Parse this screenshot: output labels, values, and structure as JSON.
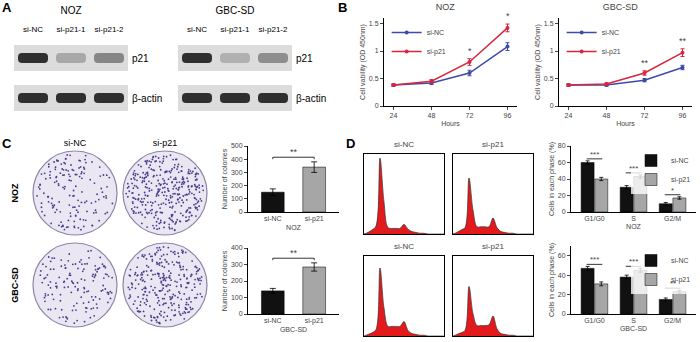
{
  "panels": [
    "A",
    "B",
    "C",
    "D"
  ],
  "blots": [
    {
      "cell_line": "NOZ",
      "lanes": [
        "si-NC",
        "si-p21-1",
        "si-p21-2"
      ],
      "rows": [
        {
          "label": "p21",
          "intensity": [
            1,
            0.3,
            0.5
          ]
        },
        {
          "label": "β-actin",
          "intensity": [
            1,
            1,
            1
          ]
        }
      ]
    },
    {
      "cell_line": "GBC-SD",
      "lanes": [
        "si-NC",
        "si-p21-1",
        "si-p21-2"
      ],
      "rows": [
        {
          "label": "p21",
          "intensity": [
            1,
            0.25,
            0.45
          ]
        },
        {
          "label": "β-actin",
          "intensity": [
            1,
            1,
            1
          ]
        }
      ]
    }
  ],
  "colony_images": {
    "row_labels": [
      "NOZ",
      "GBC-SD"
    ],
    "column_labels": [
      "si-NC",
      "si-p21"
    ]
  },
  "chart_data": [
    {
      "type": "line",
      "title": "NOZ",
      "x": [
        24,
        48,
        72,
        96
      ],
      "xlim": [
        18,
        102
      ],
      "xticks": [
        24,
        48,
        72,
        96
      ],
      "ylim": [
        0,
        1.6
      ],
      "yticks": [
        0,
        0.5,
        1,
        1.5
      ],
      "xlabel": "Hours",
      "ylabel": "Cell vability (OD 450nm)",
      "marker": "circle",
      "legend": "upper left",
      "grid": false,
      "series": [
        {
          "name": "si-NC",
          "color": "#3f4aa8",
          "values": [
            0.38,
            0.42,
            0.6,
            1.08
          ],
          "errors": [
            0.02,
            0.03,
            0.05,
            0.07
          ]
        },
        {
          "name": "si-p21",
          "color": "#d7263d",
          "values": [
            0.38,
            0.45,
            0.8,
            1.42
          ],
          "errors": [
            0.02,
            0.03,
            0.06,
            0.07
          ]
        }
      ],
      "annotations": [
        {
          "x": 72,
          "text": "*"
        },
        {
          "x": 96,
          "text": "*"
        }
      ]
    },
    {
      "type": "line",
      "title": "GBC-SD",
      "x": [
        24,
        48,
        72,
        96
      ],
      "xlim": [
        18,
        102
      ],
      "xticks": [
        24,
        48,
        72,
        96
      ],
      "ylim": [
        0,
        1.6
      ],
      "yticks": [
        0,
        0.5,
        1,
        1.5
      ],
      "xlabel": "Hours",
      "ylabel": "Cell vability (OD 450nm)",
      "marker": "circle",
      "legend": "upper left",
      "grid": false,
      "series": [
        {
          "name": "si-NC",
          "color": "#3f4aa8",
          "values": [
            0.38,
            0.38,
            0.47,
            0.7
          ],
          "errors": [
            0.02,
            0.02,
            0.03,
            0.04
          ]
        },
        {
          "name": "si-p21",
          "color": "#d7263d",
          "values": [
            0.38,
            0.4,
            0.6,
            0.97
          ],
          "errors": [
            0.02,
            0.02,
            0.04,
            0.07
          ]
        }
      ],
      "annotations": [
        {
          "x": 72,
          "text": "**"
        },
        {
          "x": 96,
          "text": "**"
        }
      ]
    },
    {
      "type": "bar",
      "categories": [
        "si-NC",
        "si-p21"
      ],
      "values": [
        150,
        340
      ],
      "errors": [
        25,
        40
      ],
      "colors": [
        "#111111",
        "#a6a6a6"
      ],
      "xlabel": "NOZ",
      "ylabel": "Number of colonies",
      "ylim": [
        0,
        500
      ],
      "yticks": [
        0,
        100,
        200,
        300,
        400,
        500
      ],
      "grid": false,
      "annotations": [
        {
          "between": [
            "si-NC",
            "si-p21"
          ],
          "text": "**"
        }
      ]
    },
    {
      "type": "bar",
      "categories": [
        "si-NC",
        "si-p21"
      ],
      "values": [
        140,
        285
      ],
      "errors": [
        15,
        25
      ],
      "colors": [
        "#111111",
        "#a6a6a6"
      ],
      "xlabel": "GBC-SD",
      "ylabel": "Number of colonies",
      "ylim": [
        0,
        400
      ],
      "yticks": [
        0,
        100,
        200,
        300,
        400
      ],
      "grid": false,
      "annotations": [
        {
          "between": [
            "si-NC",
            "si-p21"
          ],
          "text": "**"
        }
      ]
    },
    {
      "type": "area",
      "title": "si-NC",
      "color": "#e31a1c",
      "tick_labels": false,
      "grid": false,
      "x": [
        0,
        10,
        20,
        30,
        40,
        50,
        60,
        70,
        80,
        90,
        100,
        110,
        120,
        130,
        140,
        150,
        160,
        170,
        180,
        190,
        200
      ],
      "values": [
        0,
        2,
        5,
        10,
        95,
        40,
        8,
        7,
        7,
        7,
        12,
        6,
        3,
        2,
        1,
        1,
        0,
        0,
        0,
        0,
        0
      ],
      "xlim": [
        0,
        200
      ],
      "ylim": [
        0,
        100
      ]
    },
    {
      "type": "area",
      "title": "si-p21",
      "color": "#e31a1c",
      "tick_labels": false,
      "grid": false,
      "x": [
        0,
        10,
        20,
        30,
        40,
        50,
        60,
        70,
        80,
        90,
        100,
        110,
        120,
        130,
        140,
        150,
        160,
        170,
        180,
        190,
        200
      ],
      "values": [
        0,
        2,
        5,
        8,
        70,
        30,
        9,
        9,
        9,
        9,
        20,
        8,
        3,
        2,
        1,
        1,
        0,
        0,
        0,
        0,
        0
      ],
      "xlim": [
        0,
        200
      ],
      "ylim": [
        0,
        100
      ]
    },
    {
      "type": "area",
      "title": "si-NC",
      "color": "#e31a1c",
      "tick_labels": false,
      "grid": false,
      "x": [
        0,
        10,
        20,
        30,
        40,
        50,
        60,
        70,
        80,
        90,
        100,
        110,
        120,
        130,
        140,
        150,
        160,
        170,
        180,
        190,
        200
      ],
      "values": [
        0,
        2,
        4,
        8,
        85,
        35,
        12,
        12,
        12,
        12,
        18,
        7,
        3,
        2,
        1,
        1,
        0,
        0,
        0,
        0,
        0
      ],
      "xlim": [
        0,
        200
      ],
      "ylim": [
        0,
        100
      ]
    },
    {
      "type": "area",
      "title": "si-p21",
      "color": "#e31a1c",
      "tick_labels": false,
      "grid": false,
      "x": [
        0,
        10,
        20,
        30,
        40,
        50,
        60,
        70,
        80,
        90,
        100,
        110,
        120,
        130,
        140,
        150,
        160,
        170,
        180,
        190,
        200
      ],
      "values": [
        0,
        2,
        4,
        7,
        62,
        28,
        13,
        13,
        13,
        14,
        25,
        9,
        3,
        2,
        1,
        1,
        0,
        0,
        0,
        0,
        0
      ],
      "xlim": [
        0,
        200
      ],
      "ylim": [
        0,
        100
      ]
    },
    {
      "type": "bar",
      "categories": [
        "G1/G0",
        "S",
        "G2/M"
      ],
      "xlabel": "NOZ",
      "ylabel": "Cells in each phase (%)",
      "ylim": [
        0,
        80
      ],
      "yticks": [
        0,
        20,
        40,
        60,
        80
      ],
      "legend": "upper right",
      "grid": false,
      "series": [
        {
          "name": "si-NC",
          "color": "#111111",
          "values": [
            60,
            30,
            10
          ],
          "errors": [
            2,
            2,
            1.5
          ]
        },
        {
          "name": "si-p21",
          "color": "#a6a6a6",
          "values": [
            40,
            43,
            17
          ],
          "errors": [
            2,
            2,
            1.5
          ]
        }
      ],
      "annotations": [
        {
          "category": "G1/G0",
          "text": "***"
        },
        {
          "category": "S",
          "text": "***"
        },
        {
          "category": "G2/M",
          "text": "*"
        }
      ]
    },
    {
      "type": "bar",
      "categories": [
        "G1/G0",
        "S",
        "G2/M"
      ],
      "xlabel": "GBC-SD",
      "ylabel": "Cells in each phase (%)",
      "ylim": [
        0,
        70
      ],
      "yticks": [
        0,
        20,
        40,
        60
      ],
      "legend": "upper right",
      "grid": false,
      "series": [
        {
          "name": "si-NC",
          "color": "#111111",
          "values": [
            47,
            38,
            15
          ],
          "errors": [
            2,
            2,
            1.5
          ]
        },
        {
          "name": "si-p21",
          "color": "#a6a6a6",
          "values": [
            31,
            45,
            23
          ],
          "errors": [
            2,
            2,
            1.5
          ]
        }
      ],
      "annotations": [
        {
          "category": "G1/G0",
          "text": "***"
        },
        {
          "category": "S",
          "text": "***"
        },
        {
          "category": "G2/M",
          "text": "**"
        }
      ]
    }
  ]
}
